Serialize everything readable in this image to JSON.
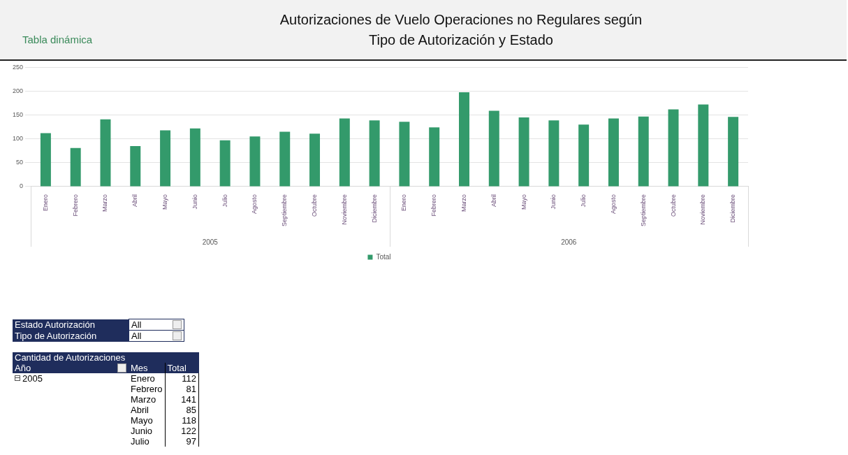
{
  "chart_data": {
    "type": "bar",
    "title": "Autorizaciones de Vuelo Operaciones no Regulares según Tipo de Autorización y Estado",
    "subtitle": "Tabla dinámica",
    "categories": [
      "Enero",
      "Febrero",
      "Marzo",
      "Abril",
      "Mayo",
      "Junio",
      "Julio",
      "Agosto",
      "Septiembre",
      "Octubre",
      "Noviembre",
      "Diciembre",
      "Enero",
      "Febrero",
      "Marzo",
      "Abril",
      "Mayo",
      "Junio",
      "Julio",
      "Agosto",
      "Septiembre",
      "Octubre",
      "Noviembre",
      "Diciembre"
    ],
    "series": [
      {
        "name": "Total",
        "color": "#339a6b",
        "values": [
          112,
          81,
          141,
          85,
          118,
          122,
          97,
          105,
          115,
          111,
          143,
          139,
          136,
          124,
          198,
          159,
          145,
          139,
          130,
          143,
          147,
          162,
          172,
          146
        ]
      }
    ],
    "ylim": [
      0,
      250
    ],
    "yticks": [
      0,
      50,
      100,
      150,
      200,
      250
    ],
    "grid": "y",
    "legend": "bottom",
    "annotations": [
      "2005",
      "2006",
      "Estado Autorización",
      "All",
      "Tipo de Autorización",
      "All",
      "Cantidad de Autorizaciones",
      "Año",
      "Mes",
      "Total",
      "2005",
      "Enero",
      "112",
      "Febrero",
      "81",
      "Marzo",
      "141",
      "Abril",
      "85",
      "Mayo",
      "118",
      "Junio",
      "122",
      "Julio",
      "97"
    ]
  }
}
